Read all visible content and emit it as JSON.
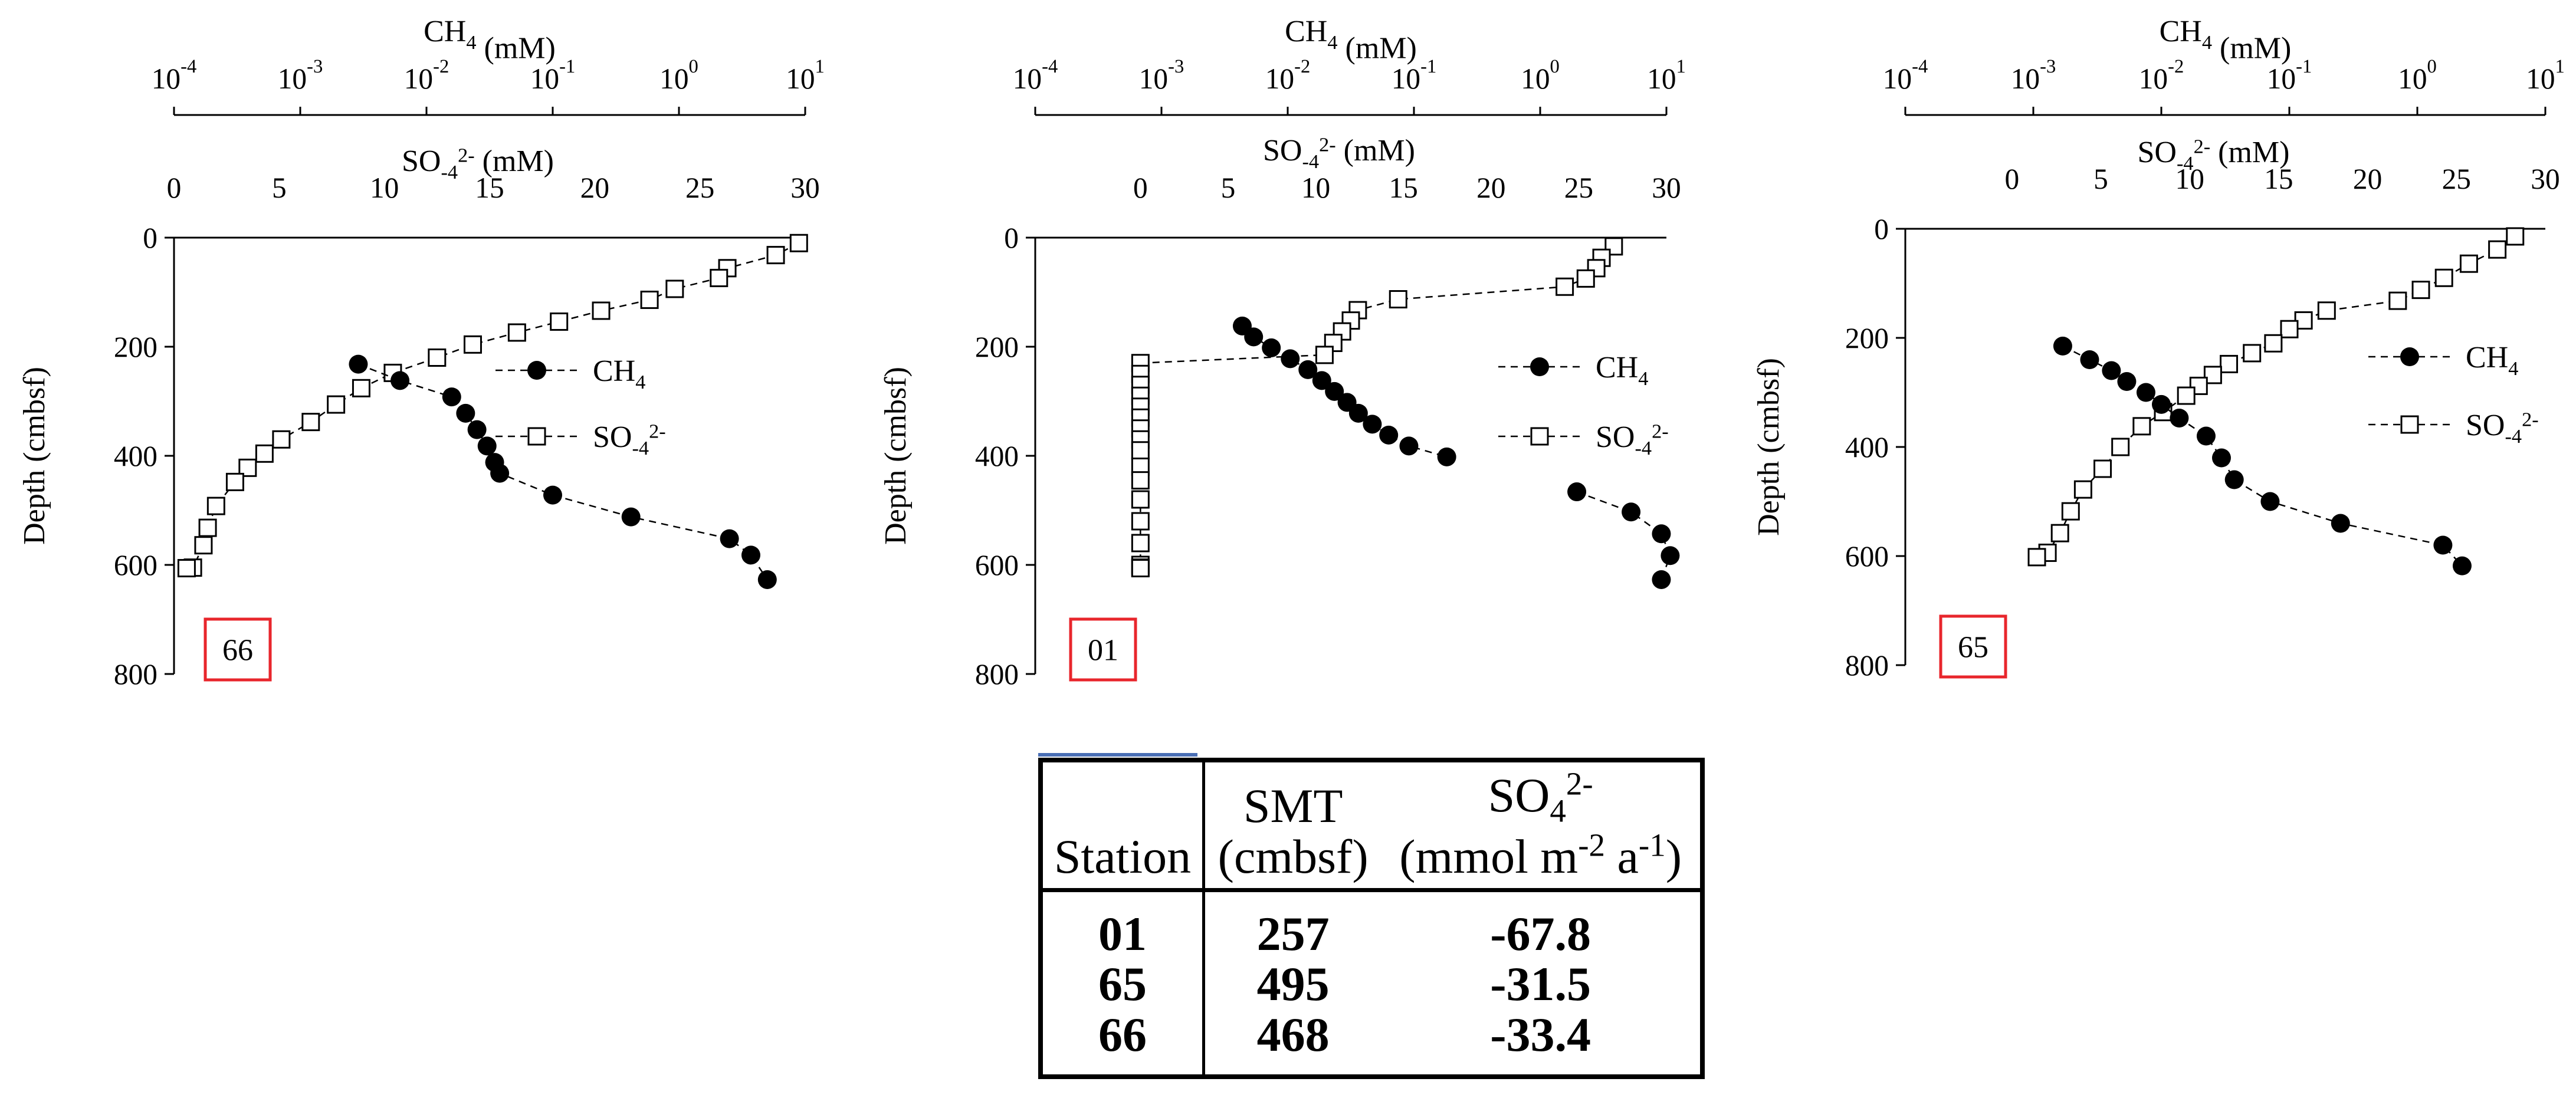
{
  "chart_data": [
    {
      "type": "scatter",
      "station_label": "66",
      "top_axis_label": {
        "base": "CH",
        "sub": "4",
        "unit": " (mM)"
      },
      "second_axis_label": {
        "base": "SO",
        "sub": "-4",
        "sup": "2-",
        "unit": " (mM)"
      },
      "ylabel": "Depth (cmbsf)",
      "ch4_ticks": [
        "-4",
        "-3",
        "-2",
        "-1",
        "0",
        "1"
      ],
      "ch4_xlim_log10": [
        -4,
        1
      ],
      "so4_xlim": [
        0,
        30
      ],
      "so4_ticks": [
        "0",
        "5",
        "10",
        "15",
        "20",
        "25",
        "30"
      ],
      "ylim": [
        0,
        800
      ],
      "yticks": [
        "0",
        "200",
        "400",
        "600",
        "800"
      ],
      "legend": {
        "ch4": {
          "base": "CH",
          "sub": "4"
        },
        "so4": {
          "base": "SO",
          "sub": "-4",
          "sup": "2-"
        },
        "position": "middle-right"
      },
      "series": [
        {
          "name": "CH4",
          "x_log10": [
            -2.54,
            -2.21,
            -1.8,
            -1.69,
            -1.6,
            -1.52,
            -1.46,
            -1.42,
            -1.0,
            -0.38,
            0.4,
            0.57,
            0.7
          ],
          "depth": [
            232,
            262,
            292,
            322,
            352,
            382,
            412,
            432,
            472,
            512,
            552,
            582,
            627
          ]
        },
        {
          "name": "SO4",
          "x": [
            29.7,
            28.6,
            26.3,
            25.9,
            23.8,
            22.6,
            20.3,
            18.3,
            16.3,
            14.2,
            12.5,
            10.4,
            8.9,
            7.7,
            6.5,
            5.1,
            4.3,
            3.5,
            2.9,
            2.0,
            1.6,
            1.4,
            0.9,
            0.6
          ],
          "depth": [
            10,
            32,
            56,
            74,
            94,
            114,
            134,
            154,
            174,
            196,
            220,
            248,
            276,
            306,
            338,
            370,
            396,
            422,
            448,
            492,
            532,
            564,
            605,
            606
          ]
        }
      ]
    },
    {
      "type": "scatter",
      "station_label": "01",
      "top_axis_label": {
        "base": "CH",
        "sub": "4",
        "unit": " (mM)"
      },
      "second_axis_label": {
        "base": "SO",
        "sub": "-4",
        "sup": "2-",
        "unit": " (mM)"
      },
      "ylabel": "Depth (cmbsf)",
      "ch4_ticks": [
        "-4",
        "-3",
        "-2",
        "-1",
        "0",
        "1"
      ],
      "ch4_xlim_log10": [
        -4,
        1
      ],
      "so4_xlim": [
        -6,
        30
      ],
      "so4_ticks": [
        "0",
        "5",
        "10",
        "15",
        "20",
        "25",
        "30"
      ],
      "ylim": [
        0,
        800
      ],
      "yticks": [
        "0",
        "200",
        "400",
        "600",
        "800"
      ],
      "legend": {
        "ch4": {
          "base": "CH",
          "sub": "4"
        },
        "so4": {
          "base": "SO",
          "sub": "-4",
          "sup": "2-"
        },
        "position": "middle-right"
      },
      "series": [
        {
          "name": "CH4",
          "x_log10": [
            -2.36,
            -2.27,
            -2.13,
            -1.98,
            -1.84,
            -1.73,
            -1.63,
            -1.53,
            -1.44,
            -1.33,
            -1.2,
            -1.04,
            -0.74,
            0.29,
            0.72,
            0.96,
            1.03,
            0.96
          ],
          "depth": [
            162,
            182,
            202,
            222,
            242,
            262,
            282,
            302,
            322,
            342,
            362,
            382,
            402,
            466,
            503,
            543,
            583,
            627
          ]
        },
        {
          "name": "SO4",
          "x": [
            27.0,
            26.3,
            26.0,
            25.4,
            24.2,
            14.7,
            12.4,
            12.0,
            11.5,
            11.0,
            10.5,
            0,
            0,
            0,
            0,
            0,
            0,
            0,
            0,
            0,
            0,
            0,
            0,
            0,
            0,
            0,
            0,
            0
          ],
          "depth": [
            16,
            37,
            56,
            75,
            90,
            113,
            133,
            152,
            172,
            193,
            215,
            230,
            250,
            270,
            290,
            310,
            330,
            350,
            370,
            390,
            420,
            445,
            480,
            520,
            560,
            600,
            605,
            606
          ]
        }
      ]
    },
    {
      "type": "scatter",
      "station_label": "65",
      "top_axis_label": {
        "base": "CH",
        "sub": "4",
        "unit": " (mM)"
      },
      "second_axis_label": {
        "base": "SO",
        "sub": "-4",
        "sup": "2-",
        "unit": " (mM)"
      },
      "ylabel": "Depth (cmbsf)",
      "ch4_ticks": [
        "-4",
        "-3",
        "-2",
        "-1",
        "0",
        "1"
      ],
      "ch4_xlim_log10": [
        -4,
        1
      ],
      "so4_xlim": [
        -6,
        30
      ],
      "so4_ticks": [
        "0",
        "5",
        "10",
        "15",
        "20",
        "25",
        "30"
      ],
      "ylim": [
        0,
        800
      ],
      "yticks": [
        "0",
        "200",
        "400",
        "600",
        "800"
      ],
      "legend": {
        "ch4": {
          "base": "CH",
          "sub": "4"
        },
        "so4": {
          "base": "SO",
          "sub": "-4",
          "sup": "2-"
        },
        "position": "middle-right"
      },
      "series": [
        {
          "name": "CH4",
          "x_log10": [
            -2.77,
            -2.56,
            -2.39,
            -2.27,
            -2.12,
            -2.0,
            -1.86,
            -1.65,
            -1.53,
            -1.43,
            -1.15,
            -0.6,
            0.2,
            0.35
          ],
          "depth": [
            215,
            240,
            260,
            280,
            300,
            322,
            347,
            380,
            420,
            460,
            500,
            540,
            580,
            618
          ]
        },
        {
          "name": "SO4",
          "x": [
            28.3,
            27.3,
            25.7,
            24.3,
            23.0,
            21.7,
            17.7,
            16.4,
            15.6,
            14.7,
            13.5,
            12.2,
            11.3,
            10.5,
            9.8,
            8.5,
            7.3,
            6.1,
            5.1,
            4.0,
            3.3,
            2.7,
            2.0,
            1.4
          ],
          "depth": [
            14,
            38,
            64,
            90,
            112,
            132,
            150,
            168,
            184,
            210,
            228,
            248,
            268,
            288,
            306,
            336,
            362,
            400,
            440,
            478,
            518,
            558,
            594,
            602
          ]
        }
      ]
    }
  ],
  "table": {
    "headers": {
      "station": "Station",
      "smt_line1": "SMT",
      "smt_line2": "(cmbsf)",
      "flux_line1": "SO",
      "flux_line1_sub": "4",
      "flux_line1_sup": "2-",
      "flux_line2_a": "(mmol m",
      "flux_line2_sup1": "-2",
      "flux_line2_b": " a",
      "flux_line2_sup2": "-1",
      "flux_line2_c": ")"
    },
    "rows": [
      {
        "station": "01",
        "smt": "257",
        "flux": "-67.8"
      },
      {
        "station": "65",
        "smt": "495",
        "flux": "-31.5"
      },
      {
        "station": "66",
        "smt": "468",
        "flux": "-33.4"
      }
    ]
  }
}
